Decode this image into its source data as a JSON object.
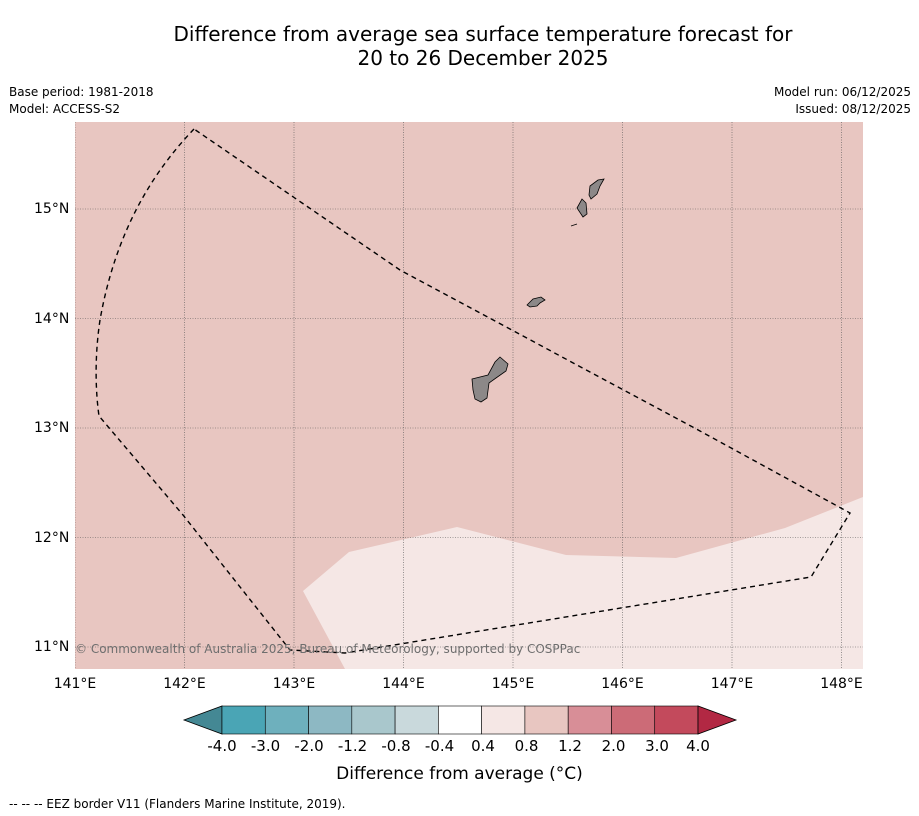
{
  "title": {
    "line1": "Difference from average sea surface temperature forecast for",
    "line2": "20 to 26 December 2025"
  },
  "meta": {
    "base_period": "Base period: 1981-2018",
    "model": "Model: ACCESS-S2",
    "model_run": "Model run: 06/12/2025",
    "issued": "Issued: 08/12/2025"
  },
  "map": {
    "lon_labels": [
      "141°E",
      "142°E",
      "143°E",
      "144°E",
      "145°E",
      "146°E",
      "147°E",
      "148°E"
    ],
    "lat_labels": [
      "15°N",
      "14°N",
      "13°N",
      "12°N",
      "11°N"
    ],
    "lon_range": [
      141.0,
      148.2
    ],
    "lat_range": [
      10.8,
      15.8
    ],
    "ocean_color": "#e8c6c1",
    "anomaly_low_color": "#f5e7e5",
    "land_color": "#8c8888",
    "copyright": "© Commonwealth of Australia 2025, Bureau of Meteorology, supported by COSPPac"
  },
  "colorbar": {
    "labels": [
      "-4.0",
      "-3.0",
      "-2.0",
      "-1.2",
      "-0.8",
      "-0.4",
      "0.4",
      "0.8",
      "1.2",
      "2.0",
      "3.0",
      "4.0"
    ],
    "colors": [
      "#448894",
      "#4aa5b5",
      "#6eb0bd",
      "#8db8c3",
      "#a9c7cc",
      "#c9d9dc",
      "#ffffff",
      "#f5e7e5",
      "#e8c6c1",
      "#d88e97",
      "#cc6b77",
      "#c34a5c",
      "#b22843"
    ],
    "title": "Difference from average (°C)"
  },
  "footer": "-- -- -- EEZ border V11 (Flanders Marine Institute, 2019)."
}
